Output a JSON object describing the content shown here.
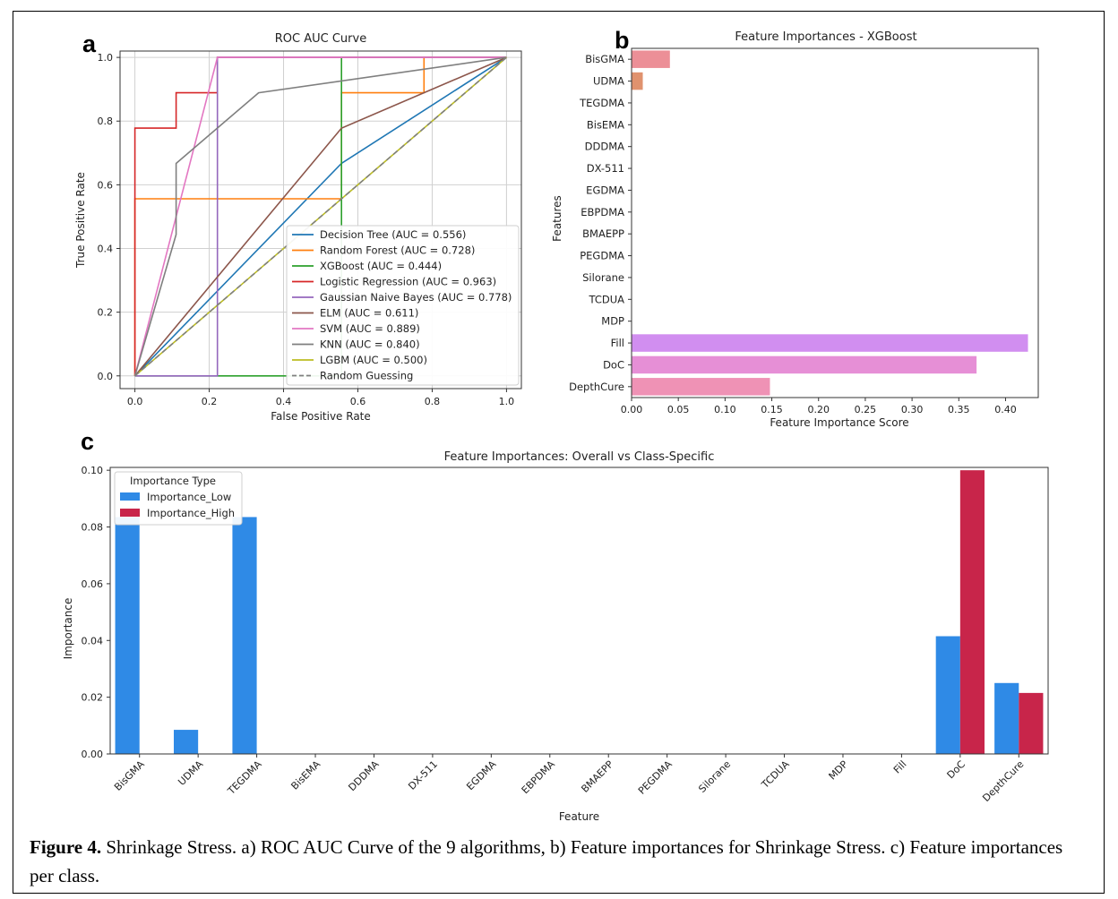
{
  "panel_letters": {
    "a": "a",
    "b": "b",
    "c": "c"
  },
  "caption": {
    "label": "Figure 4.",
    "text": " Shrinkage Stress. a) ROC AUC Curve of the 9 algorithms, b) Feature importances for Shrinkage Stress. c) Feature importances per class."
  },
  "chart_data": [
    {
      "type": "line",
      "title": "ROC AUC Curve",
      "xlabel": "False Positive Rate",
      "ylabel": "True Positive Rate",
      "xlim": [
        -0.04,
        1.04
      ],
      "ylim": [
        -0.04,
        1.02
      ],
      "xticks": [
        "0.0",
        "0.2",
        "0.4",
        "0.6",
        "0.8",
        "1.0"
      ],
      "yticks": [
        "0.0",
        "0.2",
        "0.4",
        "0.6",
        "0.8",
        "1.0"
      ],
      "grid": true,
      "legend_position": "lower-right",
      "series": [
        {
          "name": "Decision Tree (AUC = 0.556)",
          "color": "#1f77b4",
          "dash": false,
          "x": [
            0,
            0.556,
            1
          ],
          "y": [
            0,
            0.667,
            1
          ]
        },
        {
          "name": "Random Forest (AUC = 0.728)",
          "color": "#ff7f0e",
          "dash": false,
          "x": [
            0,
            0,
            0.556,
            0.556,
            0.778,
            0.778,
            1
          ],
          "y": [
            0,
            0.556,
            0.556,
            0.889,
            0.889,
            1,
            1
          ]
        },
        {
          "name": "XGBoost (AUC = 0.444)",
          "color": "#2ca02c",
          "dash": false,
          "x": [
            0,
            0.556,
            0.556,
            1
          ],
          "y": [
            0,
            0,
            1,
            1
          ]
        },
        {
          "name": "Logistic Regression (AUC = 0.963)",
          "color": "#d62728",
          "dash": false,
          "x": [
            0,
            0,
            0.111,
            0.111,
            0.222,
            0.222,
            1
          ],
          "y": [
            0,
            0.778,
            0.778,
            0.889,
            0.889,
            1,
            1
          ]
        },
        {
          "name": "Gaussian Naive Bayes (AUC = 0.778)",
          "color": "#9467bd",
          "dash": false,
          "x": [
            0,
            0.222,
            0.222,
            1
          ],
          "y": [
            0,
            0,
            1,
            1
          ]
        },
        {
          "name": "ELM (AUC = 0.611)",
          "color": "#8c564b",
          "dash": false,
          "x": [
            0,
            0.556,
            1
          ],
          "y": [
            0,
            0.778,
            1
          ]
        },
        {
          "name": "SVM (AUC = 0.889)",
          "color": "#e377c2",
          "dash": false,
          "x": [
            0,
            0.111,
            0.222,
            1
          ],
          "y": [
            0,
            0.5,
            1,
            1
          ]
        },
        {
          "name": "KNN (AUC = 0.840)",
          "color": "#7f7f7f",
          "dash": false,
          "x": [
            0,
            0.111,
            0.111,
            0.333,
            1
          ],
          "y": [
            0,
            0.444,
            0.667,
            0.889,
            1
          ]
        },
        {
          "name": "LGBM (AUC = 0.500)",
          "color": "#bcbd22",
          "dash": false,
          "x": [
            0,
            1
          ],
          "y": [
            0,
            1
          ]
        },
        {
          "name": "Random Guessing",
          "color": "#7f7f7f",
          "dash": true,
          "x": [
            0,
            1
          ],
          "y": [
            0,
            1
          ]
        }
      ]
    },
    {
      "type": "bar",
      "orientation": "horizontal",
      "title": "Feature Importances - XGBoost",
      "xlabel": "Feature Importance Score",
      "ylabel": "Features",
      "xlim": [
        0,
        0.435
      ],
      "xticks": [
        "0.00",
        "0.05",
        "0.10",
        "0.15",
        "0.20",
        "0.25",
        "0.30",
        "0.35",
        "0.40"
      ],
      "categories": [
        "BisGMA",
        "UDMA",
        "TEGDMA",
        "BisEMA",
        "DDDMA",
        "DX-511",
        "EGDMA",
        "EBPDMA",
        "BMAEPP",
        "PEGDMA",
        "Silorane",
        "TCDUA",
        "MDP",
        "Fill",
        "DoC",
        "DepthCure"
      ],
      "values": [
        0.041,
        0.012,
        0,
        0,
        0,
        0,
        0,
        0,
        0,
        0,
        0,
        0,
        0,
        0.424,
        0.369,
        0.148
      ],
      "colors": [
        "#ec8f97",
        "#e0926e",
        "#c9a35c",
        "#b5ac55",
        "#9eb453",
        "#7cbd5a",
        "#5ebf78",
        "#54bd9a",
        "#55bcb2",
        "#58b8c8",
        "#5fb1dc",
        "#83a4eb",
        "#a896f0",
        "#d18ef0",
        "#e68fd6",
        "#ef92b5"
      ]
    },
    {
      "type": "bar",
      "title": "Feature Importances: Overall vs Class-Specific",
      "xlabel": "Feature",
      "ylabel": "Importance",
      "ylim": [
        0,
        0.101
      ],
      "yticks": [
        "0.00",
        "0.02",
        "0.04",
        "0.06",
        "0.08",
        "0.10"
      ],
      "legend_title": "Importance Type",
      "legend_position": "upper-left",
      "categories": [
        "BisGMA",
        "UDMA",
        "TEGDMA",
        "BisEMA",
        "DDDMA",
        "DX-511",
        "EGDMA",
        "EBPDMA",
        "BMAEPP",
        "PEGDMA",
        "Silorane",
        "TCDUA",
        "MDP",
        "Fill",
        "DoC",
        "DepthCure"
      ],
      "series": [
        {
          "name": "Importance_Low",
          "color": "#2f8ae6",
          "values": [
            0.0835,
            0.0085,
            0.0835,
            0,
            0,
            0,
            0,
            0,
            0,
            0,
            0,
            0,
            0,
            0,
            0.0415,
            0.025
          ]
        },
        {
          "name": "Importance_High",
          "color": "#c8254a",
          "values": [
            0,
            0,
            0,
            0,
            0,
            0,
            0,
            0,
            0,
            0,
            0,
            0,
            0,
            0,
            0.1,
            0.0215
          ]
        }
      ]
    }
  ]
}
